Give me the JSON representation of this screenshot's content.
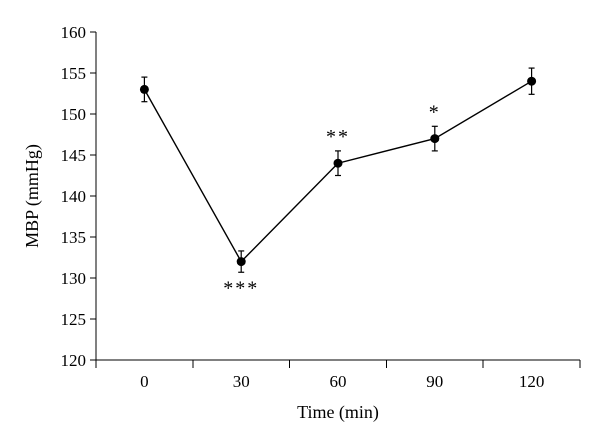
{
  "chart_data": {
    "type": "line",
    "x": [
      0,
      30,
      60,
      90,
      120
    ],
    "series": [
      {
        "values": [
          153,
          132,
          144,
          147,
          154
        ],
        "error": [
          1.5,
          1.3,
          1.5,
          1.5,
          1.6
        ],
        "significance": [
          "",
          "***",
          "**",
          "*",
          ""
        ]
      }
    ],
    "xlabel": "Time (min)",
    "ylabel": "MBP (mmHg)",
    "xticks": [
      "0",
      "30",
      "60",
      "90",
      "120"
    ],
    "yticks": [
      "120",
      "125",
      "130",
      "135",
      "140",
      "145",
      "150",
      "155",
      "160"
    ],
    "ylim": [
      120,
      160
    ],
    "grid": false,
    "legend": "none"
  }
}
